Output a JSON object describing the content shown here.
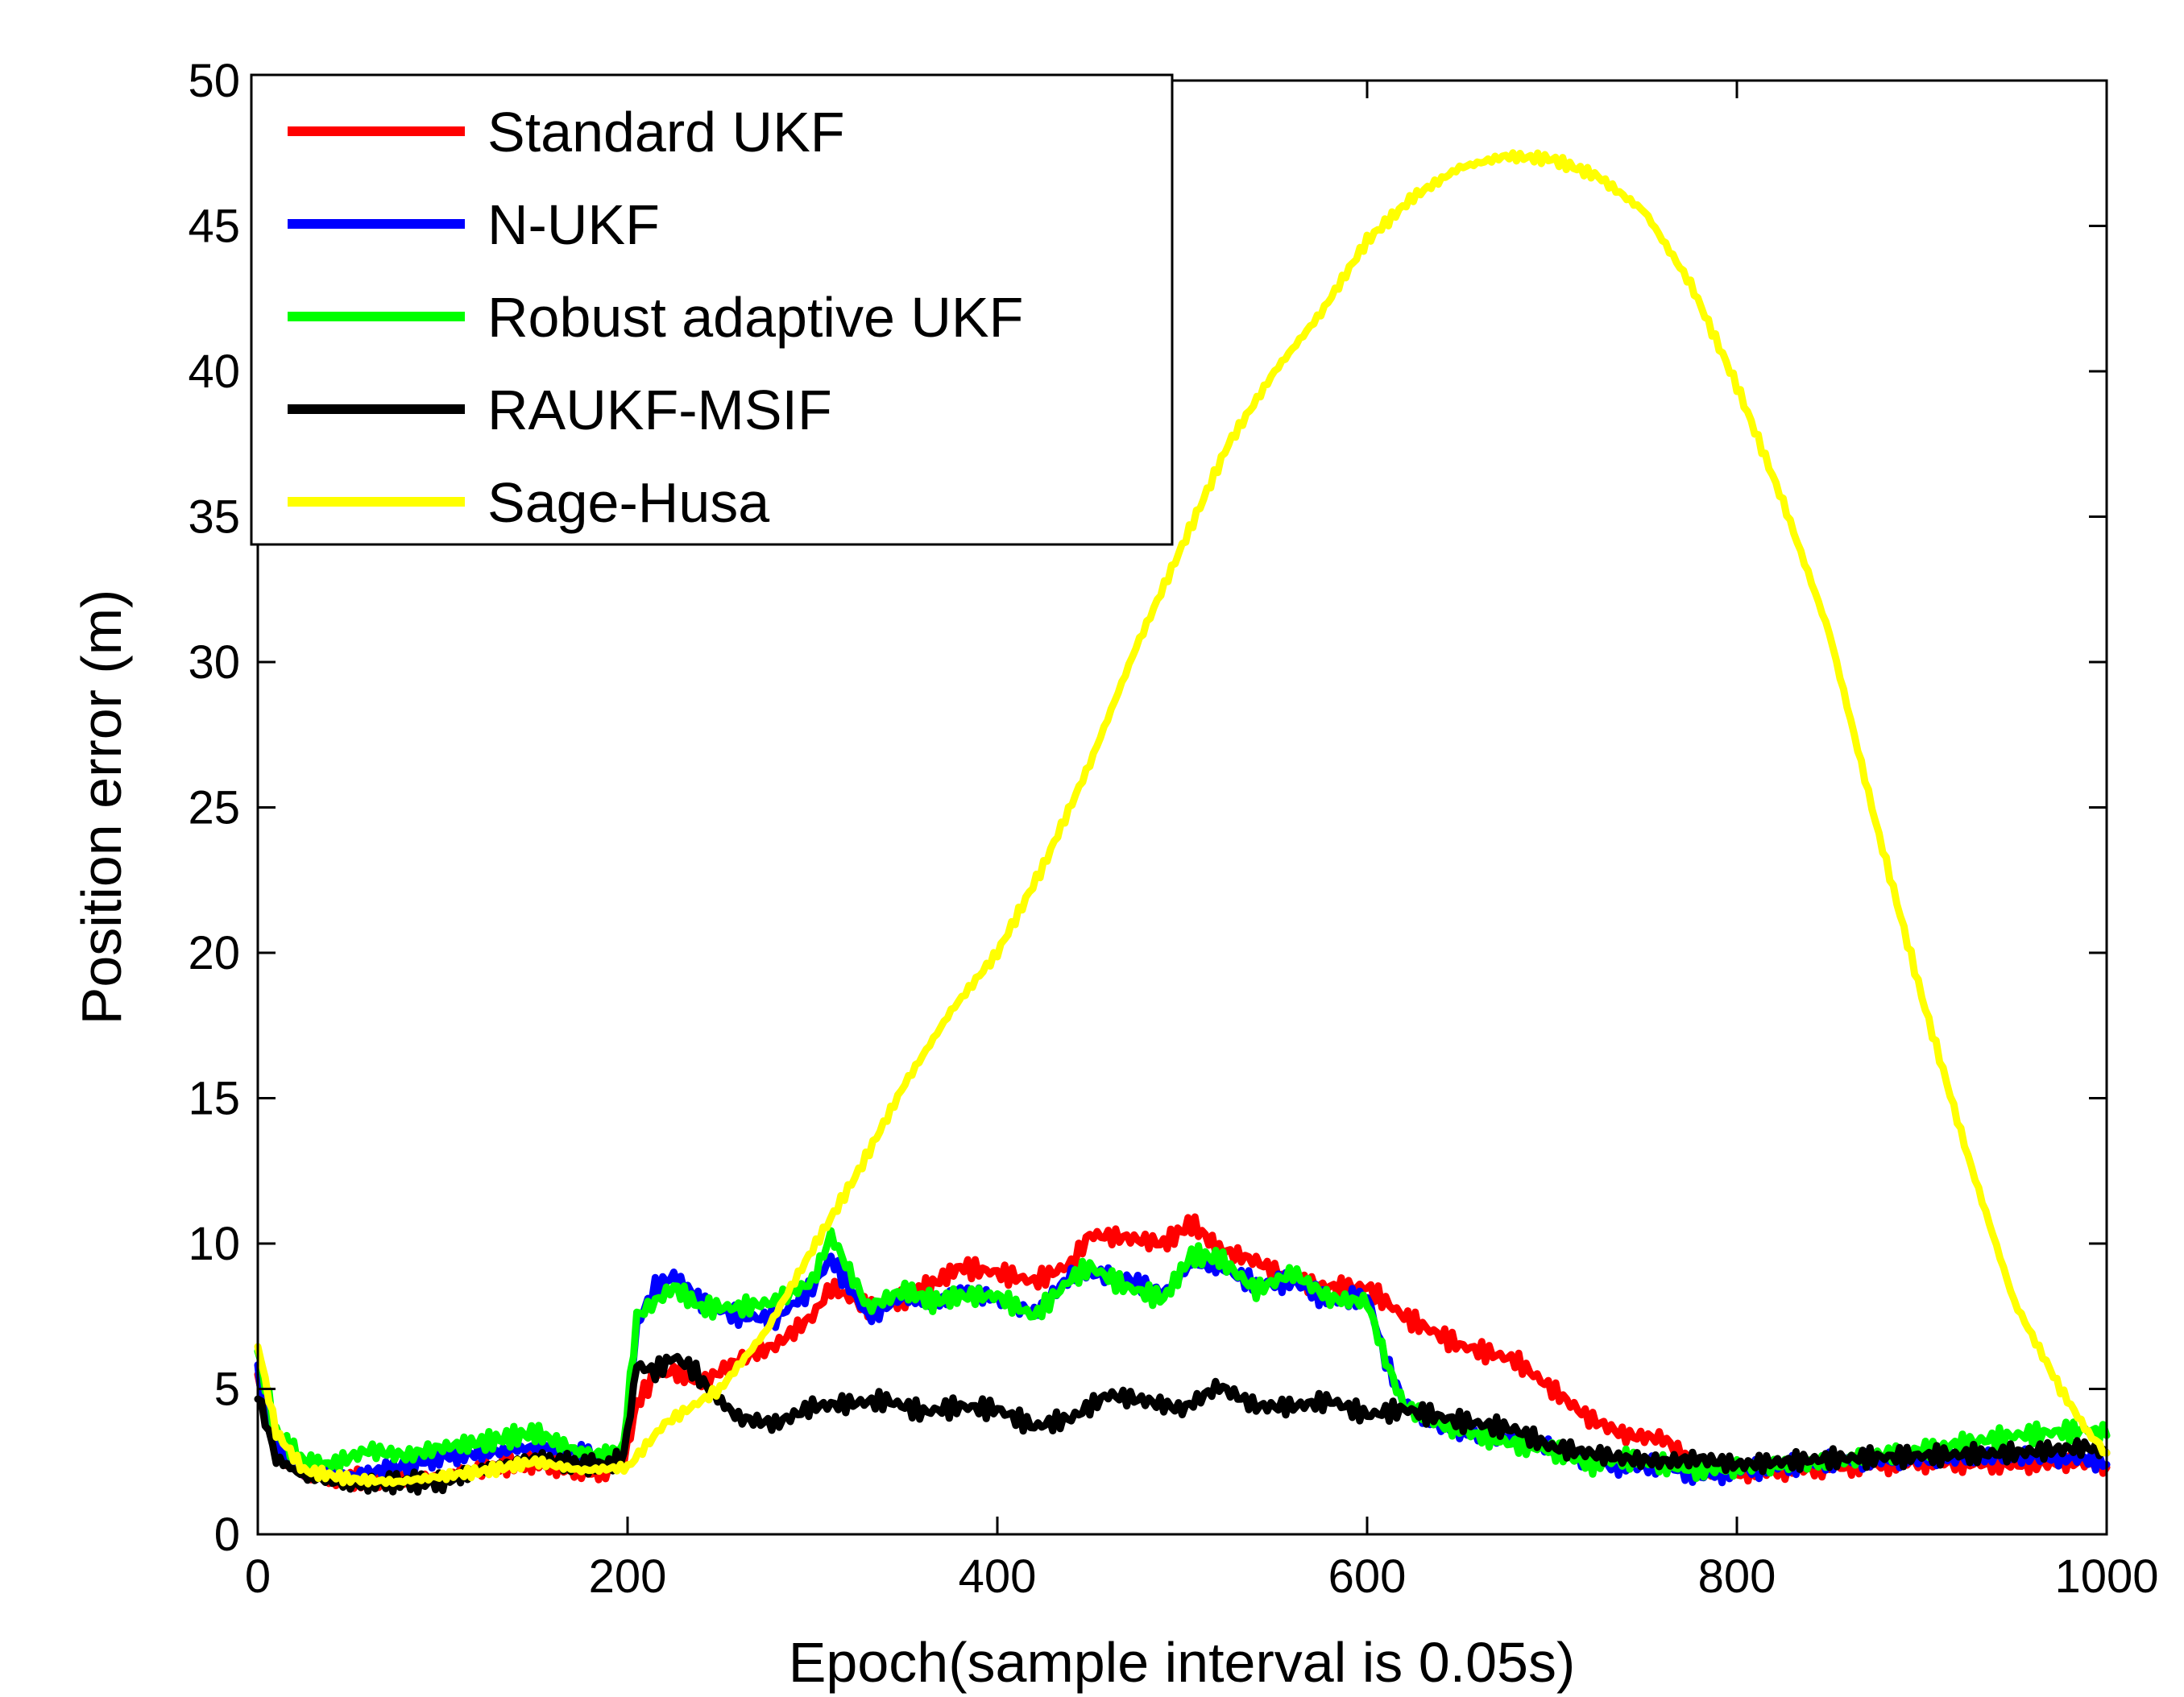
{
  "chart_data": {
    "type": "line",
    "title": "",
    "xlabel": "Epoch(sample interval is 0.05s)",
    "ylabel": "Position error (m)",
    "xlim": [
      0,
      1000
    ],
    "ylim": [
      0,
      50
    ],
    "xticks": [
      0,
      200,
      400,
      600,
      800,
      1000
    ],
    "yticks": [
      0,
      5,
      10,
      15,
      20,
      25,
      30,
      35,
      40,
      45,
      50
    ],
    "grid": false,
    "legend_position": "top-left",
    "series": [
      {
        "name": "Standard UKF",
        "color": "#ff0000",
        "x": [
          0,
          10,
          25,
          50,
          75,
          100,
          125,
          150,
          175,
          190,
          198,
          205,
          215,
          225,
          240,
          260,
          280,
          300,
          310,
          330,
          350,
          365,
          380,
          400,
          420,
          440,
          450,
          470,
          490,
          505,
          520,
          540,
          560,
          580,
          600,
          620,
          650,
          680,
          700,
          720,
          740,
          760,
          780,
          800,
          850,
          900,
          950,
          990,
          1000
        ],
        "y": [
          5.5,
          3.0,
          2.2,
          1.9,
          1.9,
          2.0,
          2.3,
          2.5,
          2.1,
          2.2,
          2.5,
          4.5,
          5.5,
          5.6,
          5.2,
          6.0,
          6.5,
          7.5,
          8.5,
          7.8,
          8.1,
          8.6,
          9.2,
          9.0,
          8.7,
          9.3,
          10.3,
          10.2,
          10.0,
          10.7,
          9.8,
          9.4,
          8.7,
          8.5,
          8.5,
          7.5,
          6.5,
          6.0,
          5.0,
          4.0,
          3.4,
          3.3,
          2.3,
          2.1,
          2.3,
          2.5,
          2.4,
          2.5,
          2.3
        ]
      },
      {
        "name": "N-UKF",
        "color": "#0000ff",
        "x": [
          0,
          10,
          25,
          50,
          75,
          100,
          125,
          150,
          175,
          190,
          198,
          205,
          215,
          225,
          240,
          260,
          280,
          300,
          310,
          330,
          350,
          365,
          380,
          400,
          420,
          440,
          450,
          470,
          490,
          505,
          520,
          540,
          560,
          580,
          600,
          610,
          620,
          640,
          660,
          680,
          700,
          720,
          740,
          760,
          780,
          800,
          850,
          900,
          950,
          990,
          1000
        ],
        "y": [
          5.5,
          3.0,
          2.2,
          2.0,
          2.3,
          2.7,
          2.8,
          3.0,
          2.8,
          2.6,
          2.9,
          7.2,
          8.5,
          8.9,
          8.0,
          7.5,
          7.4,
          8.5,
          9.5,
          7.5,
          8.2,
          7.8,
          8.4,
          8.1,
          7.6,
          8.9,
          9.0,
          8.8,
          8.3,
          9.3,
          9.2,
          8.6,
          8.7,
          8.0,
          8.2,
          6.0,
          4.5,
          3.7,
          3.4,
          3.3,
          3.0,
          2.5,
          2.3,
          2.4,
          2.0,
          2.2,
          2.5,
          2.6,
          2.7,
          2.6,
          2.4
        ]
      },
      {
        "name": "Robust adaptive UKF",
        "color": "#00ff00",
        "x": [
          0,
          10,
          25,
          40,
          60,
          80,
          100,
          125,
          150,
          175,
          190,
          198,
          205,
          215,
          225,
          240,
          260,
          280,
          300,
          310,
          330,
          350,
          365,
          380,
          400,
          420,
          440,
          450,
          470,
          490,
          505,
          520,
          540,
          560,
          580,
          600,
          610,
          620,
          640,
          660,
          680,
          700,
          720,
          740,
          760,
          780,
          800,
          850,
          900,
          950,
          990,
          1000
        ],
        "y": [
          6.3,
          3.5,
          2.5,
          2.4,
          2.9,
          2.7,
          3.0,
          3.2,
          3.5,
          2.8,
          2.7,
          3.1,
          7.5,
          8.0,
          8.5,
          7.8,
          7.8,
          8.0,
          8.7,
          10.3,
          7.8,
          8.4,
          8.0,
          8.2,
          8.2,
          7.5,
          8.8,
          9.2,
          8.5,
          8.1,
          9.6,
          9.5,
          8.4,
          9.0,
          8.1,
          8.0,
          6.0,
          4.4,
          3.8,
          3.4,
          3.1,
          2.9,
          2.4,
          2.6,
          2.4,
          2.2,
          2.3,
          2.5,
          2.9,
          3.4,
          3.6,
          3.4
        ]
      },
      {
        "name": "RAUKF-MSIF",
        "color": "#000000",
        "x": [
          0,
          10,
          25,
          50,
          75,
          100,
          125,
          150,
          175,
          190,
          198,
          205,
          215,
          225,
          235,
          245,
          260,
          280,
          300,
          320,
          340,
          360,
          380,
          400,
          420,
          440,
          460,
          480,
          500,
          520,
          540,
          560,
          580,
          600,
          620,
          650,
          680,
          700,
          720,
          740,
          760,
          780,
          800,
          850,
          900,
          950,
          990,
          1000
        ],
        "y": [
          4.8,
          2.6,
          2.0,
          1.7,
          1.8,
          1.8,
          2.3,
          2.6,
          2.4,
          2.4,
          2.7,
          5.8,
          5.6,
          6.1,
          5.7,
          4.9,
          4.0,
          3.8,
          4.4,
          4.5,
          4.6,
          4.2,
          4.4,
          4.3,
          3.7,
          4.0,
          4.8,
          4.6,
          4.3,
          5.1,
          4.4,
          4.4,
          4.6,
          4.1,
          4.3,
          3.9,
          3.6,
          3.0,
          2.8,
          2.6,
          2.5,
          2.6,
          2.4,
          2.6,
          2.7,
          2.8,
          3.0,
          2.8
        ]
      },
      {
        "name": "Sage-Husa",
        "color": "#ffff00",
        "x": [
          0,
          10,
          25,
          50,
          75,
          100,
          125,
          150,
          175,
          200,
          220,
          250,
          275,
          300,
          325,
          350,
          375,
          400,
          425,
          450,
          475,
          500,
          525,
          550,
          575,
          600,
          625,
          650,
          675,
          700,
          725,
          750,
          775,
          800,
          825,
          850,
          875,
          900,
          925,
          950,
          975,
          990,
          1000
        ],
        "y": [
          6.5,
          3.5,
          2.2,
          1.9,
          1.8,
          2.0,
          2.2,
          2.5,
          2.2,
          2.3,
          3.8,
          5.0,
          7.0,
          9.8,
          12.5,
          15.5,
          18.0,
          20.0,
          23.0,
          26.5,
          30.5,
          34.0,
          37.5,
          40.0,
          42.0,
          44.5,
          46.0,
          47.0,
          47.4,
          47.3,
          46.7,
          45.5,
          43.0,
          39.5,
          35.5,
          31.0,
          24.5,
          18.5,
          13.0,
          8.0,
          5.0,
          3.5,
          2.8
        ]
      }
    ]
  }
}
